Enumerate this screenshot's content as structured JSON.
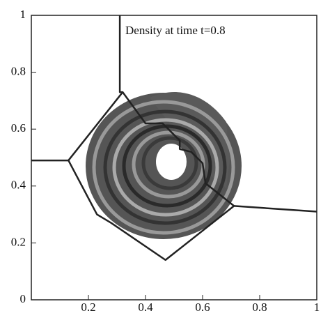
{
  "chart_data": {
    "type": "line",
    "title": "Density at time t=0.8",
    "xlim": [
      0,
      1
    ],
    "ylim": [
      0,
      1
    ],
    "xticks": [
      0.2,
      0.4,
      0.6,
      0.8,
      1
    ],
    "yticks": [
      0,
      0.2,
      0.4,
      0.6,
      0.8,
      1
    ],
    "series": [
      {
        "color": "#222222",
        "x": [
          0,
          0.13,
          0.23,
          0.28,
          0.47,
          0.71,
          1
        ],
        "values": [
          0.49,
          0.49,
          0.3,
          0.27,
          0.14,
          0.33,
          0.31
        ]
      },
      {
        "color": "#222222",
        "x": [
          0.13,
          0.32,
          0.4,
          0.46,
          0.52,
          0.52,
          0.56,
          0.6,
          0.61,
          0.71
        ],
        "values": [
          0.49,
          0.73,
          0.62,
          0.62,
          0.56,
          0.53,
          0.52,
          0.48,
          0.41,
          0.33
        ]
      },
      {
        "color": "#222222",
        "x": [
          0.31,
          0.31,
          0.32
        ],
        "values": [
          1,
          0.73,
          0.73
        ]
      }
    ]
  }
}
